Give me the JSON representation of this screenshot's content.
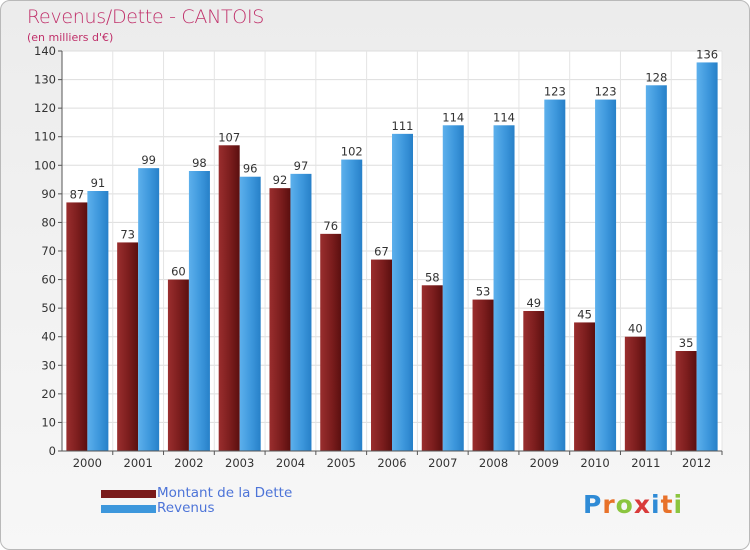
{
  "chart_data": {
    "type": "bar",
    "title": "Revenus/Dette - CANTOIS",
    "subtitle": "(en milliers d'€)",
    "categories": [
      "2000",
      "2001",
      "2002",
      "2003",
      "2004",
      "2005",
      "2006",
      "2007",
      "2008",
      "2009",
      "2010",
      "2011",
      "2012"
    ],
    "series": [
      {
        "name": "Montant de la Dette",
        "color": "#7a1a1a",
        "values": [
          87,
          73,
          60,
          107,
          92,
          76,
          67,
          58,
          53,
          49,
          45,
          40,
          35
        ]
      },
      {
        "name": "Revenus",
        "color": "#3d97dc",
        "values": [
          91,
          99,
          98,
          96,
          97,
          102,
          111,
          114,
          114,
          123,
          123,
          128,
          136
        ]
      }
    ],
    "ylim": [
      0,
      140
    ],
    "yticks": [
      0,
      10,
      20,
      30,
      40,
      50,
      60,
      70,
      80,
      90,
      100,
      110,
      120,
      130,
      140
    ],
    "grid": true,
    "legend_position": "bottom-left"
  },
  "logo": {
    "text": "Proxiti",
    "letters": [
      "P",
      "r",
      "o",
      "x",
      "i",
      "t",
      "i"
    ],
    "colors": [
      "#2f8bd6",
      "#e8722a",
      "#8bc53f",
      "#d93a3a",
      "#2f8bd6",
      "#e8722a",
      "#8bc53f"
    ]
  }
}
